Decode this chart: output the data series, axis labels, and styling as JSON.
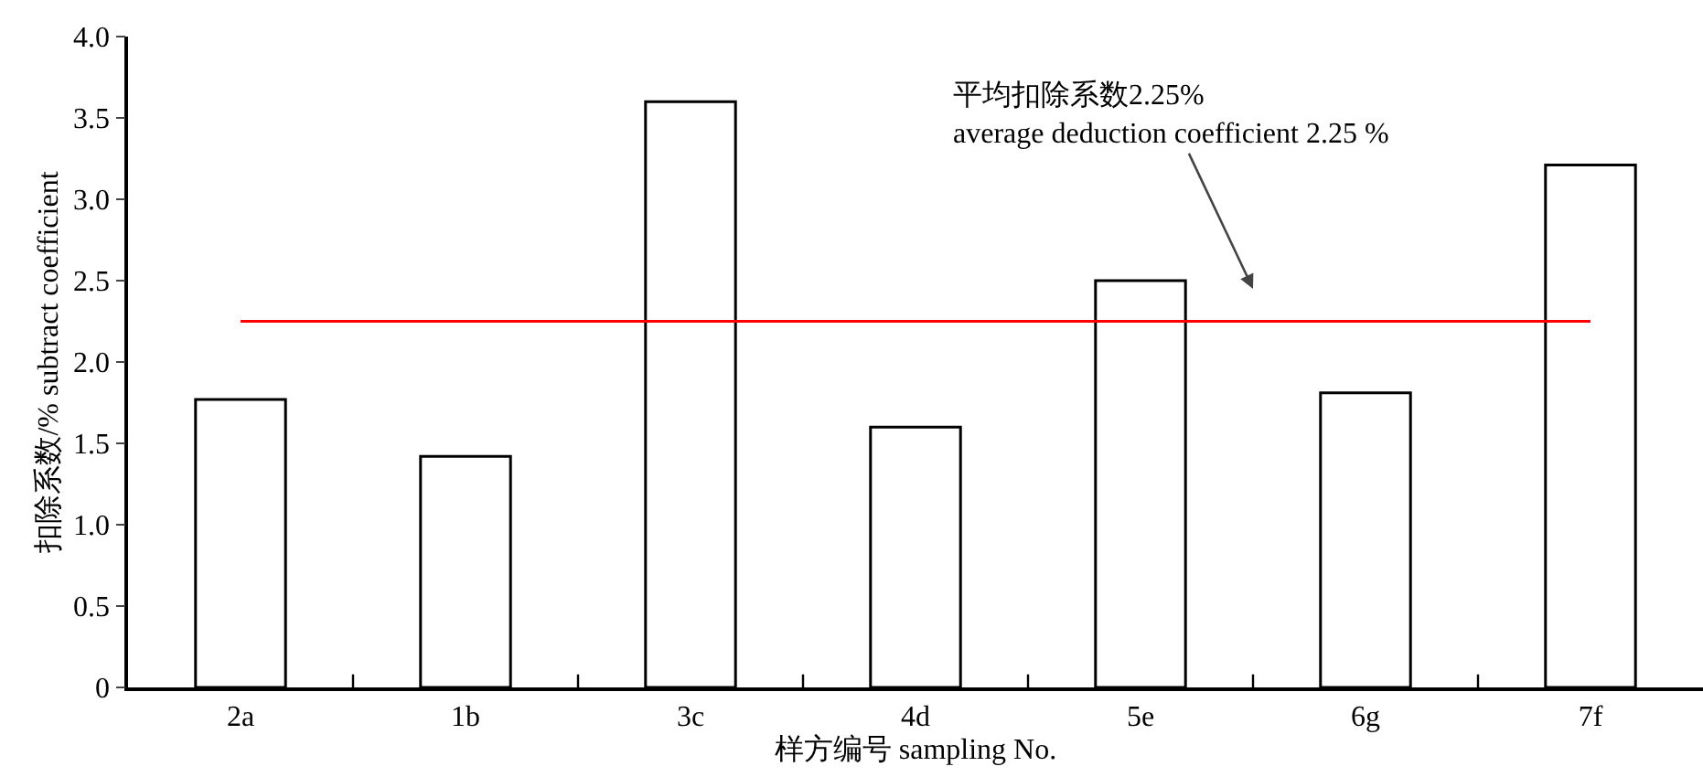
{
  "chart_data": {
    "type": "bar",
    "xlabel": "样方编号 sampling No.",
    "ylabel": "扣除系数/% subtract coefficient",
    "categories": [
      "2a",
      "1b",
      "3c",
      "4d",
      "5e",
      "6g",
      "7f"
    ],
    "values": [
      1.77,
      1.42,
      3.6,
      1.6,
      2.5,
      1.81,
      3.21
    ],
    "color": "#ffffff",
    "ylim": [
      0,
      4
    ],
    "yticks": [
      {
        "value": 0,
        "label": "0"
      },
      {
        "value": 0.5,
        "label": "0.5"
      },
      {
        "value": 1,
        "label": "1.0"
      },
      {
        "value": 1.5,
        "label": "1.5"
      },
      {
        "value": 2,
        "label": "2.0"
      },
      {
        "value": 2.5,
        "label": "2.5"
      },
      {
        "value": 3,
        "label": "3.0"
      },
      {
        "value": 3.5,
        "label": "3.5"
      },
      {
        "value": 4,
        "label": "4.0"
      }
    ],
    "ref_lines": [
      {
        "axis": "y",
        "value": 2.25,
        "color": "#ff0000"
      }
    ],
    "annotations": [
      "平均扣除系数2.25%\naverage deduction coefficient 2.25 %"
    ],
    "grid": false,
    "legend": false
  }
}
